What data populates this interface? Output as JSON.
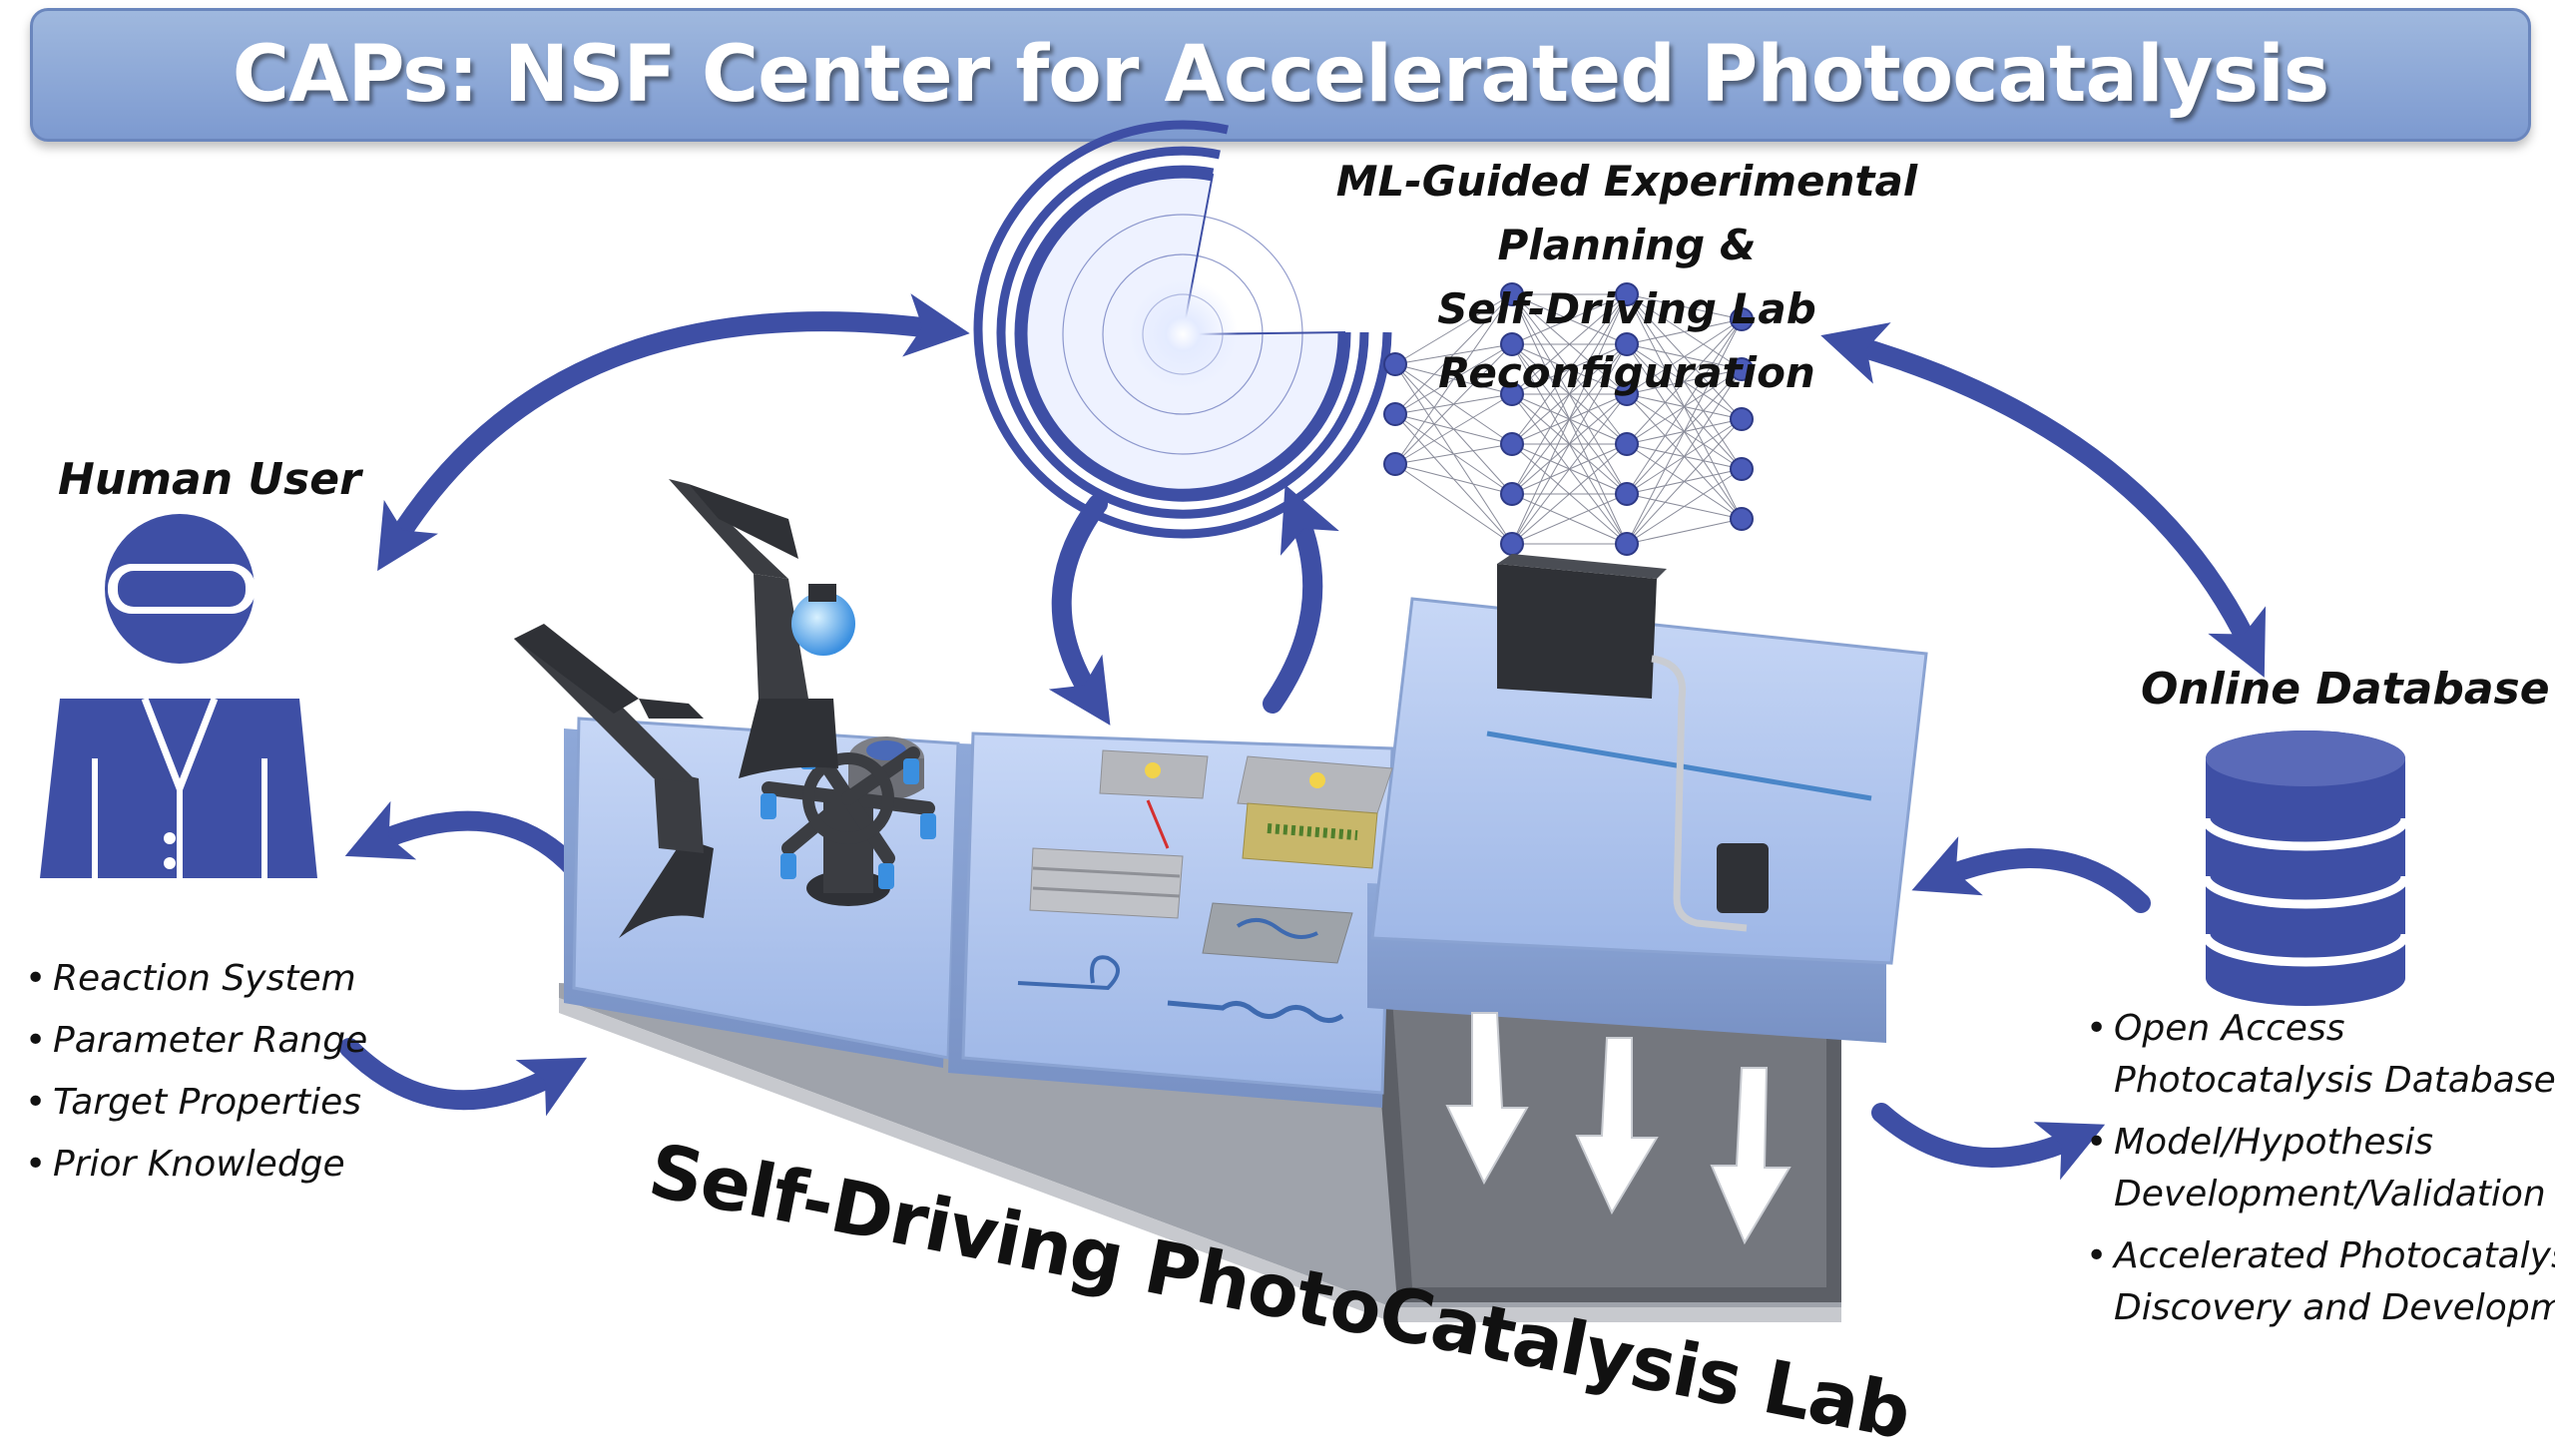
{
  "title": {
    "prefix": "CAPs:",
    "rest": " NSF Center for Accelerated Photocatalysis"
  },
  "ml_planning": {
    "line1": "ML-Guided Experimental Planning &",
    "line2": "Self-Driving Lab Reconfiguration"
  },
  "human_user": {
    "heading": "Human User",
    "items": [
      "Reaction System",
      "Parameter Range",
      "Target Properties",
      "Prior Knowledge"
    ]
  },
  "online_database": {
    "heading": "Online Database",
    "items": [
      {
        "line1": "Open Access",
        "line2": "Photocatalysis Database"
      },
      {
        "line1": "Model/Hypothesis",
        "line2": "Development/Validation"
      },
      {
        "line1": "Accelerated Photocatalyst",
        "line2": "Discovery and Development"
      }
    ]
  },
  "lab": {
    "title": "Self-Driving PhotoCatalysis Lab"
  },
  "colors": {
    "accent": "#3e4fa5",
    "banner": "#8ea8d8",
    "platform": "#a9c2ef",
    "robot": "#3b3d42"
  }
}
